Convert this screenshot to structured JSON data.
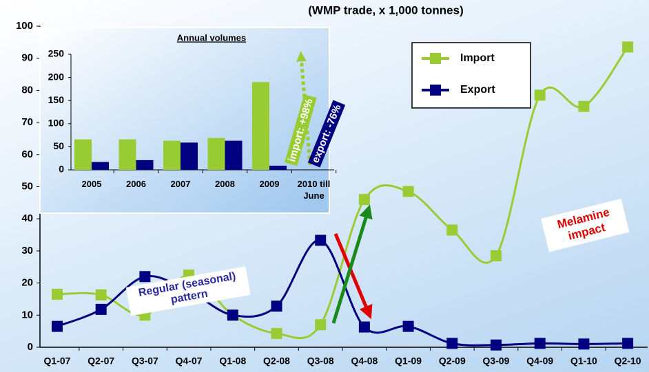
{
  "chart_data": [
    {
      "type": "line",
      "title": "(WMP trade, x 1,000 tonnes)",
      "categories": [
        "Q1-07",
        "Q2-07",
        "Q3-07",
        "Q4-07",
        "Q1-08",
        "Q2-08",
        "Q3-08",
        "Q4-08",
        "Q1-09",
        "Q2-09",
        "Q3-09",
        "Q4-09",
        "Q1-10",
        "Q2-10"
      ],
      "series": [
        {
          "name": "Import",
          "color": "#99cc33",
          "values": [
            16.5,
            16.3,
            10,
            22.5,
            10,
            4.3,
            7,
            46,
            48.5,
            36.5,
            28.5,
            78.5,
            75,
            93.5
          ]
        },
        {
          "name": "Export",
          "color": "#000080",
          "values": [
            6.5,
            11.8,
            22,
            17.5,
            10,
            12.8,
            33.3,
            6.3,
            6.5,
            1.2,
            0.7,
            1.2,
            1,
            1.2
          ]
        }
      ],
      "ylim": [
        0,
        100
      ],
      "yticks": [
        0,
        10,
        20,
        30,
        40,
        50,
        60,
        70,
        80,
        90,
        100
      ],
      "grid": false,
      "legend": "upper right",
      "annotations": [
        "Regular (seasonal) pattern",
        "Melamine impact"
      ]
    },
    {
      "type": "bar",
      "title": "Annual volumes",
      "categories": [
        "2005",
        "2006",
        "2007",
        "2008",
        "2009",
        "2010 till June"
      ],
      "series": [
        {
          "name": "Import",
          "color": "#99cc33",
          "values": [
            66,
            66,
            63,
            69,
            190,
            null
          ]
        },
        {
          "name": "Export",
          "color": "#000080",
          "values": [
            17,
            21,
            59,
            63,
            9,
            null
          ]
        }
      ],
      "ylim": [
        0,
        250
      ],
      "yticks": [
        0,
        50,
        100,
        150,
        200,
        250
      ],
      "annotations": [
        "import: +98%",
        "export: -76%"
      ]
    }
  ]
}
